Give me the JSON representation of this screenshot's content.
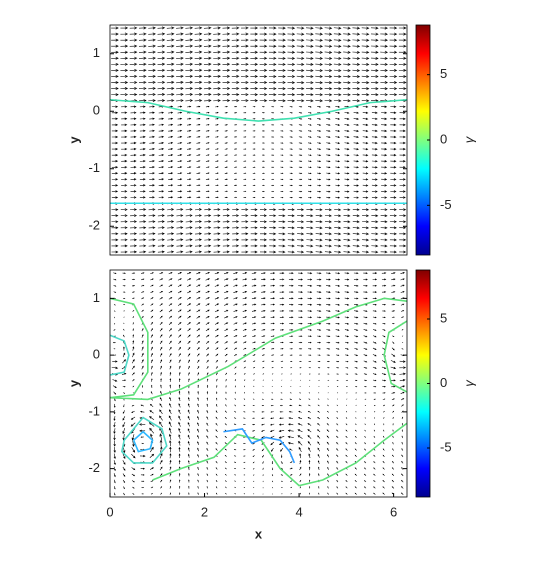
{
  "chart_data": [
    {
      "type": "quiver",
      "ylabel": "y",
      "xlim": [
        0,
        6.283
      ],
      "ylim": [
        -2.5,
        1.5
      ],
      "yticks": [
        -2,
        -1,
        0,
        1
      ],
      "colorbar": {
        "label": "γ",
        "lim": [
          -8.8,
          8.8
        ],
        "ticks": [
          -5,
          0,
          5
        ],
        "colormap": "jet"
      },
      "series": [
        {
          "color": "#3fe0b0",
          "x": [
            0,
            0.8,
            1.6,
            2.4,
            3.14,
            3.9,
            4.7,
            5.5,
            6.283
          ],
          "y": [
            0.2,
            0.15,
            0.0,
            -0.12,
            -0.17,
            -0.12,
            0.0,
            0.15,
            0.2
          ]
        },
        {
          "color": "#30e0e8",
          "x": [
            0,
            6.283
          ],
          "y": [
            -1.6,
            -1.6
          ]
        }
      ]
    },
    {
      "type": "quiver",
      "ylabel": "y",
      "xlabel": "x",
      "xlim": [
        0,
        6.283
      ],
      "ylim": [
        -2.5,
        1.5
      ],
      "xticks": [
        0,
        2,
        4,
        6
      ],
      "yticks": [
        -2,
        -1,
        0,
        1
      ],
      "colorbar": {
        "label": "γ",
        "lim": [
          -8.8,
          8.8
        ],
        "ticks": [
          -5,
          0,
          5
        ],
        "colormap": "jet"
      },
      "series": [
        {
          "color": "#5ee07a",
          "x": [
            0,
            0.8,
            1.5,
            2.5,
            3.5,
            4.5,
            5.2,
            5.8,
            6.283
          ],
          "y": [
            -0.75,
            -0.78,
            -0.6,
            -0.2,
            0.3,
            0.6,
            0.85,
            1.0,
            0.95
          ]
        },
        {
          "color": "#5ee07a",
          "x": [
            0,
            0.5,
            0.8,
            0.8,
            0.5,
            0
          ],
          "y": [
            1.0,
            0.9,
            0.4,
            -0.3,
            -0.7,
            -0.75
          ]
        },
        {
          "color": "#5ee07a",
          "x": [
            0.9,
            1.5,
            2.2,
            2.7,
            3.2,
            3.6,
            4.0,
            4.5,
            5.2,
            5.8,
            6.283
          ],
          "y": [
            -2.2,
            -2.0,
            -1.8,
            -1.4,
            -1.5,
            -2.0,
            -2.3,
            -2.2,
            -1.9,
            -1.5,
            -1.2
          ]
        },
        {
          "color": "#4fd8c8",
          "x": [
            0.3,
            0.7,
            1.1,
            1.2,
            0.9,
            0.5,
            0.25,
            0.3
          ],
          "y": [
            -1.5,
            -1.1,
            -1.3,
            -1.6,
            -1.9,
            -1.9,
            -1.7,
            -1.5
          ]
        },
        {
          "color": "#2fb8ff",
          "x": [
            0.5,
            0.7,
            0.9,
            0.85,
            0.6,
            0.5
          ],
          "y": [
            -1.5,
            -1.35,
            -1.5,
            -1.65,
            -1.7,
            -1.5
          ]
        },
        {
          "color": "#4fd8c8",
          "x": [
            0,
            0.3,
            0.4,
            0.3,
            0
          ],
          "y": [
            0.35,
            0.25,
            0,
            -0.3,
            -0.35
          ]
        },
        {
          "color": "#2f9cff",
          "x": [
            2.4,
            2.8,
            3.0,
            3.3,
            3.6,
            3.8,
            3.9
          ],
          "y": [
            -1.35,
            -1.3,
            -1.55,
            -1.45,
            -1.5,
            -1.7,
            -1.9
          ]
        },
        {
          "color": "#5ee07a",
          "x": [
            6.283,
            5.9,
            5.8,
            5.95,
            6.283
          ],
          "y": [
            0.6,
            0.4,
            0,
            -0.5,
            -0.65
          ]
        }
      ]
    }
  ]
}
